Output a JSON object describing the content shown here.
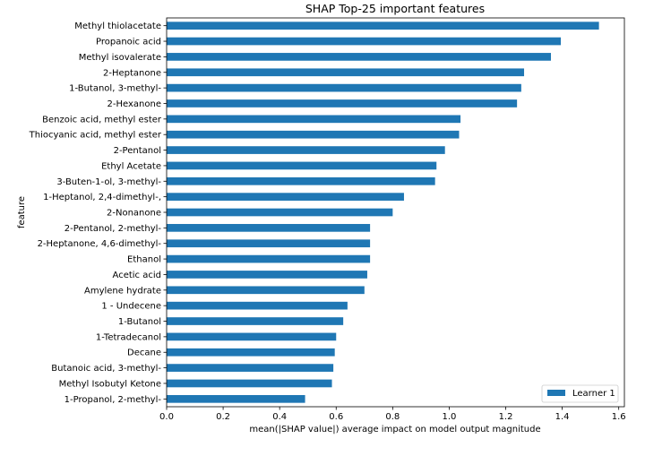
{
  "chart_data": {
    "type": "bar",
    "orientation": "horizontal",
    "title": "SHAP Top-25 important features",
    "xlabel": "mean(|SHAP value|) average impact on model output magnitude",
    "ylabel": "feature",
    "xlim": [
      0,
      1.62
    ],
    "xticks": [
      0.0,
      0.2,
      0.4,
      0.6,
      0.8,
      1.0,
      1.2,
      1.4,
      1.6
    ],
    "xtick_labels": [
      "0.0",
      "0.2",
      "0.4",
      "0.6",
      "0.8",
      "1.0",
      "1.2",
      "1.4",
      "1.6"
    ],
    "grid": false,
    "legend_position": "bottom-right",
    "bar_color": "#1f77b4",
    "categories": [
      "Methyl thiolacetate",
      "Propanoic acid",
      "Methyl isovalerate",
      "2-Heptanone",
      "1-Butanol, 3-methyl-",
      "2-Hexanone",
      "Benzoic acid, methyl ester",
      "Thiocyanic acid, methyl ester",
      "2-Pentanol",
      "Ethyl Acetate",
      "3-Buten-1-ol, 3-methyl-",
      "1-Heptanol, 2,4-dimethyl-,",
      "2-Nonanone",
      "2-Pentanol, 2-methyl-",
      "2-Heptanone, 4,6-dimethyl-",
      "Ethanol",
      "Acetic acid",
      "Amylene hydrate",
      "1 - Undecene",
      "1-Butanol",
      "1-Tetradecanol",
      "Decane",
      "Butanoic acid, 3-methyl-",
      "Methyl Isobutyl Ketone",
      "1-Propanol, 2-methyl-"
    ],
    "series": [
      {
        "name": "Learner 1",
        "values": [
          1.53,
          1.395,
          1.36,
          1.265,
          1.255,
          1.24,
          1.04,
          1.035,
          0.985,
          0.955,
          0.95,
          0.84,
          0.8,
          0.72,
          0.72,
          0.72,
          0.71,
          0.7,
          0.64,
          0.625,
          0.6,
          0.595,
          0.59,
          0.585,
          0.49
        ]
      }
    ]
  }
}
